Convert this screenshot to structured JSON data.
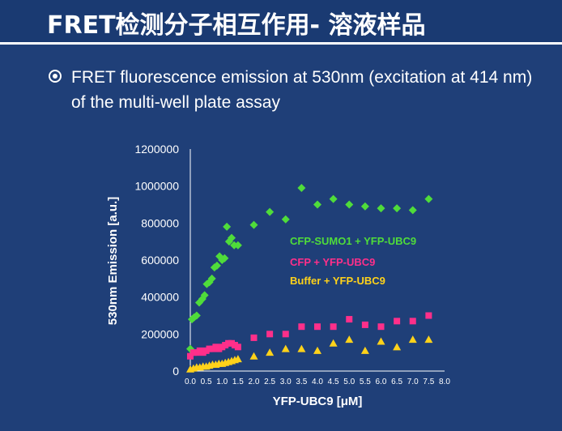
{
  "slide": {
    "title": "FRET检测分子相互作用- 溶液样品",
    "bullet": "FRET fluorescence emission at 530nm (excitation at 414 nm) of the multi-well plate assay"
  },
  "colors": {
    "background": "#1f3f78",
    "green": "#4fdc3a",
    "pink": "#ff2f8a",
    "yellow": "#ffd21a"
  },
  "chart_data": {
    "type": "scatter",
    "xlabel": "YFP-UBC9 [μM]",
    "ylabel": "530nm Emission [a.u.]",
    "xlim": [
      0,
      8
    ],
    "ylim": [
      0,
      1200000
    ],
    "xticks": [
      "0.0",
      "0.5",
      "1.0",
      "1.5",
      "2.0",
      "2.5",
      "3.0",
      "3.5",
      "4.0",
      "4.5",
      "5.0",
      "5.5",
      "6.0",
      "6.5",
      "7.0",
      "7.5",
      "8.0"
    ],
    "yticks": [
      "0",
      "200000",
      "400000",
      "600000",
      "800000",
      "1000000",
      "1200000"
    ],
    "legend_placement": "inside-right",
    "series": [
      {
        "name": "CFP-SUMO1 + YFP-UBC9",
        "marker": "diamond",
        "color": "#4fdc3a",
        "x": [
          0.0,
          0.05,
          0.12,
          0.2,
          0.28,
          0.38,
          0.45,
          0.52,
          0.6,
          0.68,
          0.76,
          0.84,
          0.92,
          1.0,
          1.08,
          1.15,
          1.22,
          1.3,
          1.38,
          1.5,
          2.0,
          2.5,
          3.0,
          3.5,
          4.0,
          4.5,
          5.0,
          5.5,
          6.0,
          6.5,
          7.0,
          7.5
        ],
        "y": [
          120000,
          280000,
          290000,
          300000,
          370000,
          390000,
          410000,
          470000,
          480000,
          500000,
          560000,
          570000,
          620000,
          600000,
          610000,
          780000,
          700000,
          720000,
          680000,
          680000,
          790000,
          860000,
          820000,
          990000,
          900000,
          930000,
          900000,
          890000,
          880000,
          880000,
          870000,
          930000
        ]
      },
      {
        "name": "CFP + YFP-UBC9",
        "marker": "square",
        "color": "#ff2f8a",
        "x": [
          0.0,
          0.1,
          0.2,
          0.3,
          0.4,
          0.5,
          0.6,
          0.7,
          0.8,
          0.9,
          1.0,
          1.1,
          1.2,
          1.3,
          1.4,
          1.5,
          2.0,
          2.5,
          3.0,
          3.5,
          4.0,
          4.5,
          5.0,
          5.5,
          6.0,
          6.5,
          7.0,
          7.5
        ],
        "y": [
          80000,
          100000,
          100000,
          110000,
          100000,
          110000,
          120000,
          120000,
          130000,
          120000,
          130000,
          140000,
          150000,
          150000,
          140000,
          130000,
          180000,
          200000,
          200000,
          240000,
          240000,
          240000,
          280000,
          250000,
          240000,
          270000,
          270000,
          300000
        ]
      },
      {
        "name": "Buffer + YFP-UBC9",
        "marker": "triangle",
        "color": "#ffd21a",
        "x": [
          0.0,
          0.1,
          0.2,
          0.3,
          0.4,
          0.5,
          0.6,
          0.7,
          0.8,
          0.9,
          1.0,
          1.1,
          1.2,
          1.3,
          1.4,
          1.5,
          2.0,
          2.5,
          3.0,
          3.5,
          4.0,
          4.5,
          5.0,
          5.5,
          6.0,
          6.5,
          7.0,
          7.5
        ],
        "y": [
          10000,
          15000,
          20000,
          20000,
          25000,
          25000,
          30000,
          35000,
          35000,
          40000,
          40000,
          45000,
          50000,
          55000,
          60000,
          65000,
          80000,
          100000,
          120000,
          120000,
          110000,
          150000,
          170000,
          110000,
          160000,
          130000,
          170000,
          170000
        ]
      }
    ]
  }
}
